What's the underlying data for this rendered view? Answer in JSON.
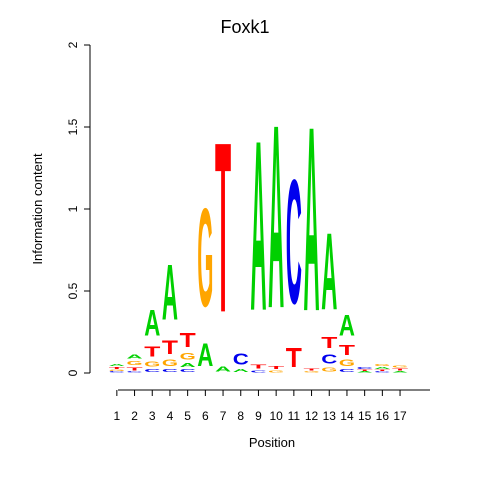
{
  "chart_data": {
    "type": "sequence_logo",
    "title": "Foxk1",
    "xlabel": "Position",
    "ylabel": "Information content",
    "ylim": [
      0,
      2
    ],
    "yticks": [
      "0",
      "0.5",
      "1",
      "1.5",
      "2"
    ],
    "positions": [
      "1",
      "2",
      "3",
      "4",
      "5",
      "6",
      "7",
      "8",
      "9",
      "10",
      "11",
      "12",
      "13",
      "14",
      "15",
      "16",
      "17"
    ],
    "colors": {
      "A": "#00d000",
      "C": "#0000ee",
      "G": "#ffa500",
      "T": "#ff0000"
    },
    "stacks": [
      [
        [
          "C",
          0.01
        ],
        [
          "G",
          0.01
        ],
        [
          "T",
          0.02
        ],
        [
          "A",
          0.02
        ]
      ],
      [
        [
          "C",
          0.01
        ],
        [
          "T",
          0.03
        ],
        [
          "G",
          0.04
        ],
        [
          "A",
          0.04
        ]
      ],
      [
        [
          "C",
          0.03
        ],
        [
          "G",
          0.05
        ],
        [
          "T",
          0.1
        ],
        [
          "A",
          0.25
        ]
      ],
      [
        [
          "C",
          0.03
        ],
        [
          "G",
          0.06
        ],
        [
          "T",
          0.13
        ],
        [
          "A",
          0.54
        ]
      ],
      [
        [
          "C",
          0.03
        ],
        [
          "A",
          0.04
        ],
        [
          "G",
          0.06
        ],
        [
          "T",
          0.14
        ]
      ],
      [
        [
          "A",
          0.22
        ],
        [
          "G",
          0.96
        ]
      ],
      [
        [
          "A",
          0.05
        ],
        [
          "T",
          1.66
        ]
      ],
      [
        [
          "A",
          0.03
        ],
        [
          "C",
          0.11
        ]
      ],
      [
        [
          "C",
          0.02
        ],
        [
          "T",
          0.04
        ],
        [
          "A",
          1.66
        ]
      ],
      [
        [
          "G",
          0.02
        ],
        [
          "T",
          0.03
        ],
        [
          "A",
          1.79
        ]
      ],
      [
        [
          "T",
          0.19
        ],
        [
          "C",
          1.21
        ]
      ],
      [
        [
          "G",
          0.01
        ],
        [
          "T",
          0.02
        ],
        [
          "A",
          1.8
        ]
      ],
      [
        [
          "G",
          0.04
        ],
        [
          "C",
          0.09
        ],
        [
          "T",
          0.11
        ],
        [
          "A",
          0.75
        ]
      ],
      [
        [
          "C",
          0.03
        ],
        [
          "G",
          0.06
        ],
        [
          "T",
          0.1
        ],
        [
          "A",
          0.2
        ]
      ],
      [
        [
          "A",
          0.01
        ],
        [
          "T",
          0.01
        ],
        [
          "C",
          0.02
        ]
      ],
      [
        [
          "C",
          0.01
        ],
        [
          "T",
          0.01
        ],
        [
          "A",
          0.02
        ],
        [
          "G",
          0.02
        ]
      ],
      [
        [
          "A",
          0.01
        ],
        [
          "T",
          0.02
        ],
        [
          "G",
          0.02
        ]
      ]
    ]
  }
}
